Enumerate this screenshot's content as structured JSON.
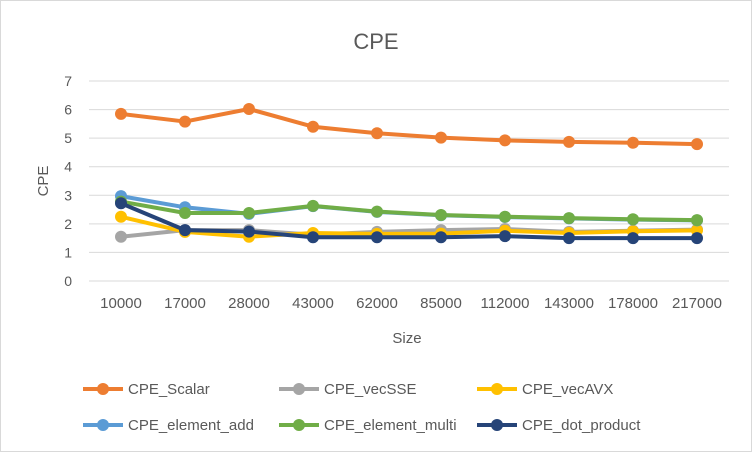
{
  "chart_data": {
    "type": "line",
    "title": "CPE",
    "xlabel": "Size",
    "ylabel": "CPE",
    "categories": [
      "10000",
      "17000",
      "28000",
      "43000",
      "62000",
      "85000",
      "112000",
      "143000",
      "178000",
      "217000"
    ],
    "ylim": [
      0,
      7
    ],
    "yticks": [
      "0",
      "1",
      "2",
      "3",
      "4",
      "5",
      "6",
      "7"
    ],
    "grid": true,
    "legend_position": "bottom",
    "series": [
      {
        "name": "CPE_Scalar",
        "color": "#ED7D31",
        "values": [
          5.85,
          5.58,
          6.02,
          5.4,
          5.17,
          5.02,
          4.92,
          4.87,
          4.84,
          4.79
        ]
      },
      {
        "name": "CPE_vecSSE",
        "color": "#A5A5A5",
        "values": [
          1.55,
          1.78,
          1.78,
          1.62,
          1.72,
          1.78,
          1.82,
          1.72,
          1.76,
          1.8
        ]
      },
      {
        "name": "CPE_vecAVX",
        "color": "#FFC000",
        "values": [
          2.25,
          1.72,
          1.55,
          1.68,
          1.65,
          1.66,
          1.76,
          1.68,
          1.74,
          1.77
        ]
      },
      {
        "name": "CPE_element_add",
        "color": "#5B9BD5",
        "values": [
          2.97,
          2.58,
          2.35,
          2.62,
          2.42,
          2.3,
          2.24,
          2.19,
          2.15,
          2.12
        ]
      },
      {
        "name": "CPE_element_multi",
        "color": "#70AD47",
        "values": [
          2.78,
          2.38,
          2.38,
          2.63,
          2.43,
          2.31,
          2.25,
          2.2,
          2.16,
          2.13
        ]
      },
      {
        "name": "CPE_dot_product",
        "color": "#264478",
        "values": [
          2.72,
          1.78,
          1.73,
          1.53,
          1.53,
          1.53,
          1.57,
          1.5,
          1.5,
          1.5
        ]
      }
    ]
  }
}
